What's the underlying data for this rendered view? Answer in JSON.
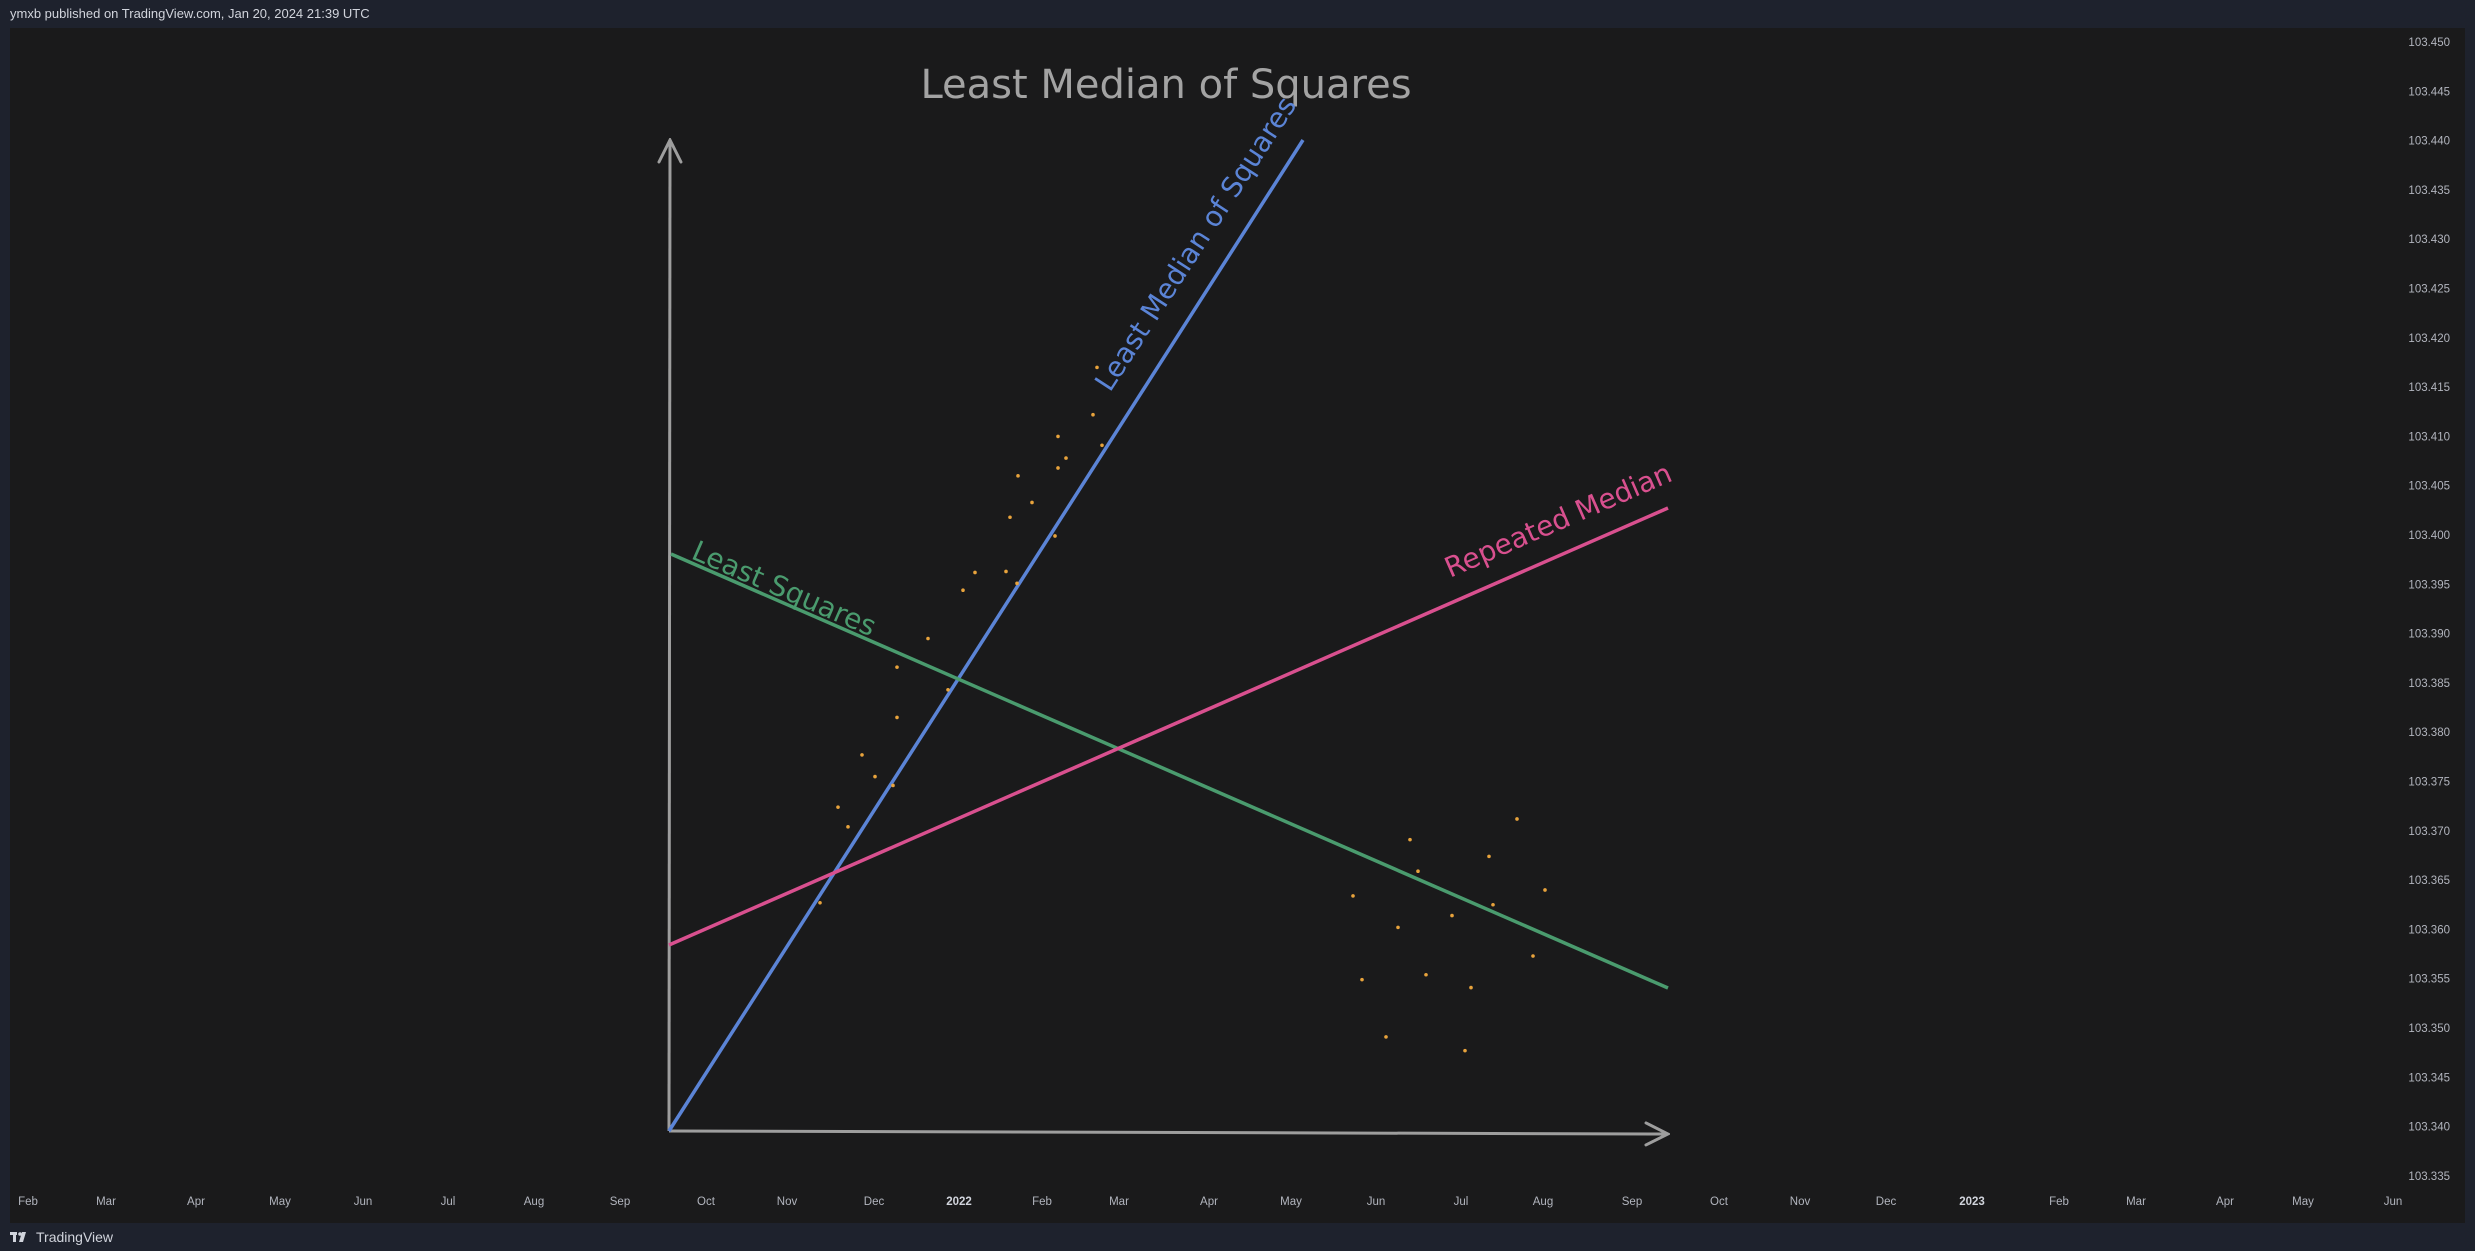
{
  "header": {
    "publish_info": "ymxb published on TradingView.com, Jan 20, 2024 21:39 UTC"
  },
  "footer": {
    "brand": "TradingView",
    "brand_icon": "tradingview-logo-icon"
  },
  "colors": {
    "background": "#1a1a1b",
    "axis_arrows": "#9e9e9e",
    "least_median_line": "#5b84d6",
    "least_squares_line": "#4a9b6e",
    "repeated_median_line": "#d9508f",
    "points": "#e8a33c"
  },
  "chart_data": {
    "type": "scatter",
    "title": "Least Median of Squares",
    "price_axis": {
      "ticks": [
        "103.450",
        "103.445",
        "103.440",
        "103.435",
        "103.430",
        "103.425",
        "103.420",
        "103.415",
        "103.410",
        "103.405",
        "103.400",
        "103.395",
        "103.390",
        "103.385",
        "103.380",
        "103.375",
        "103.370",
        "103.365",
        "103.360",
        "103.355",
        "103.350",
        "103.345",
        "103.340",
        "103.335"
      ],
      "ylim": [
        103.335,
        103.45
      ]
    },
    "time_axis": {
      "ticks": [
        "Feb",
        "Mar",
        "Apr",
        "May",
        "Jun",
        "Jul",
        "Aug",
        "Sep",
        "Oct",
        "Nov",
        "Dec",
        "2022",
        "Feb",
        "Mar",
        "Apr",
        "May",
        "Jun",
        "Jul",
        "Aug",
        "Sep",
        "Oct",
        "Nov",
        "Dec",
        "2023",
        "Feb",
        "Mar",
        "Apr",
        "May",
        "Jun"
      ],
      "year_ticks": [
        "2022",
        "2023"
      ]
    },
    "fit_lines": [
      {
        "name": "Least Median of Squares",
        "start": [
          "Sep 2021",
          103.3402
        ],
        "end": [
          "May 2022",
          103.4401
        ]
      },
      {
        "name": "Least Squares",
        "start": [
          "Sep 2021",
          103.3988
        ],
        "end": [
          "Sep 2022",
          103.3547
        ]
      },
      {
        "name": "Repeated Median",
        "start": [
          "Sep 2021",
          103.3595
        ],
        "end": [
          "Sep 2022",
          103.4031
        ]
      }
    ],
    "points": [
      [
        "Nov 2021",
        103.3627
      ],
      [
        "Nov 2021",
        103.3724
      ],
      [
        "Nov 2021",
        103.3704
      ],
      [
        "Dec 2021",
        103.3777
      ],
      [
        "Dec 2021",
        103.3755
      ],
      [
        "Dec 2021",
        103.3746
      ],
      [
        "Dec 2021",
        103.3815
      ],
      [
        "Dec 2021",
        103.3866
      ],
      [
        "Dec 2021",
        103.3895
      ],
      [
        "Jan 2022",
        103.3843
      ],
      [
        "Jan 2022",
        103.3944
      ],
      [
        "Jan 2022",
        103.3962
      ],
      [
        "Jan 2022",
        103.3963
      ],
      [
        "Jan 2022",
        103.4018
      ],
      [
        "Jan 2022",
        103.406
      ],
      [
        "Feb 2022",
        103.3951
      ],
      [
        "Feb 2022",
        103.4033
      ],
      [
        "Feb 2022",
        103.3999
      ],
      [
        "Feb 2022",
        103.4068
      ],
      [
        "Feb 2022",
        103.41
      ],
      [
        "Feb 2022",
        103.4078
      ],
      [
        "Mar 2022",
        103.4122
      ],
      [
        "Mar 2022",
        103.417
      ],
      [
        "Mar 2022",
        103.4091
      ],
      [
        "Jun 2022",
        103.3634
      ],
      [
        "Jun 2022",
        103.3549
      ],
      [
        "Jun 2022",
        103.3491
      ],
      [
        "Jun 2022",
        103.3602
      ],
      [
        "Jun 2022",
        103.3691
      ],
      [
        "Jun 2022",
        103.3659
      ],
      [
        "Jun 2022",
        103.3554
      ],
      [
        "Jul 2022",
        103.3614
      ],
      [
        "Jul 2022",
        103.3477
      ],
      [
        "Jul 2022",
        103.3541
      ],
      [
        "Jul 2022",
        103.3674
      ],
      [
        "Jul 2022",
        103.3625
      ],
      [
        "Aug 2022",
        103.3712
      ],
      [
        "Aug 2022",
        103.3573
      ],
      [
        "Aug 2022",
        103.364
      ]
    ]
  }
}
